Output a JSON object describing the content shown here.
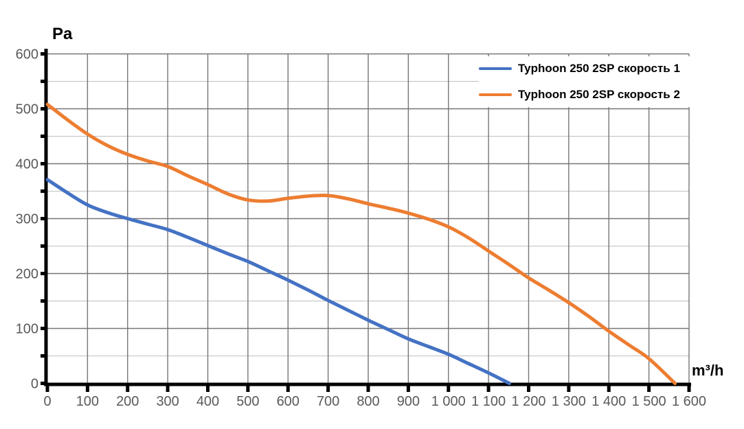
{
  "axis_titles": {
    "y": "Pa",
    "x": "m³/h"
  },
  "legend": [
    {
      "label": "Typhoon 250 2SP скорость 1",
      "color": "#4472C4"
    },
    {
      "label": "Typhoon 250 2SP скорость 2",
      "color": "#ED7D31"
    }
  ],
  "colors": {
    "speed1_line": "#4472C4",
    "speed2_line": "#ED7D31",
    "major_grid": "#757575",
    "minor_grid": "#BFBFBF",
    "axis_line": "#000000",
    "tick_label": "#595959"
  },
  "chart_data": {
    "type": "line",
    "title": "",
    "xlabel": "m³/h",
    "ylabel": "Pa",
    "xlim": [
      0,
      1600
    ],
    "ylim": [
      0,
      600
    ],
    "x_major_step": 100,
    "y_major_step": 100,
    "y_minor_step": 50,
    "grid": "on",
    "legend_position": "top-right",
    "x_tick_labels": [
      "0",
      "100",
      "200",
      "300",
      "400",
      "500",
      "600",
      "700",
      "800",
      "900",
      "1 000",
      "1 100",
      "1 200",
      "1 300",
      "1 400",
      "1 500",
      "1 600"
    ],
    "x_tick_values": [
      0,
      100,
      200,
      300,
      400,
      500,
      600,
      700,
      800,
      900,
      1000,
      1100,
      1200,
      1300,
      1400,
      1500,
      1600
    ],
    "y_tick_labels": [
      "0",
      "100",
      "200",
      "300",
      "400",
      "500",
      "600"
    ],
    "y_tick_values": [
      0,
      100,
      200,
      300,
      400,
      500,
      600
    ],
    "series": [
      {
        "name": "Typhoon 250 2SP скорость 1",
        "color": "#4472C4",
        "points": [
          [
            0,
            371
          ],
          [
            50,
            347
          ],
          [
            100,
            325
          ],
          [
            150,
            311
          ],
          [
            200,
            300
          ],
          [
            250,
            290
          ],
          [
            300,
            280
          ],
          [
            350,
            266
          ],
          [
            400,
            251
          ],
          [
            450,
            236
          ],
          [
            500,
            222
          ],
          [
            550,
            205
          ],
          [
            600,
            188
          ],
          [
            650,
            170
          ],
          [
            700,
            151
          ],
          [
            750,
            133
          ],
          [
            800,
            115
          ],
          [
            850,
            98
          ],
          [
            900,
            81
          ],
          [
            950,
            67
          ],
          [
            1000,
            53
          ],
          [
            1050,
            36
          ],
          [
            1100,
            19
          ],
          [
            1152,
            0
          ]
        ]
      },
      {
        "name": "Typhoon 250 2SP скорость 2",
        "color": "#ED7D31",
        "points": [
          [
            0,
            508
          ],
          [
            50,
            480
          ],
          [
            100,
            454
          ],
          [
            150,
            433
          ],
          [
            200,
            417
          ],
          [
            250,
            405
          ],
          [
            300,
            395
          ],
          [
            350,
            378
          ],
          [
            400,
            362
          ],
          [
            450,
            345
          ],
          [
            500,
            334
          ],
          [
            550,
            332
          ],
          [
            600,
            337
          ],
          [
            650,
            341
          ],
          [
            700,
            342
          ],
          [
            750,
            336
          ],
          [
            800,
            327
          ],
          [
            850,
            319
          ],
          [
            900,
            310
          ],
          [
            950,
            299
          ],
          [
            1000,
            285
          ],
          [
            1050,
            265
          ],
          [
            1100,
            241
          ],
          [
            1150,
            217
          ],
          [
            1200,
            192
          ],
          [
            1250,
            170
          ],
          [
            1300,
            147
          ],
          [
            1350,
            122
          ],
          [
            1400,
            95
          ],
          [
            1450,
            70
          ],
          [
            1500,
            45
          ],
          [
            1565,
            0
          ]
        ]
      }
    ]
  }
}
